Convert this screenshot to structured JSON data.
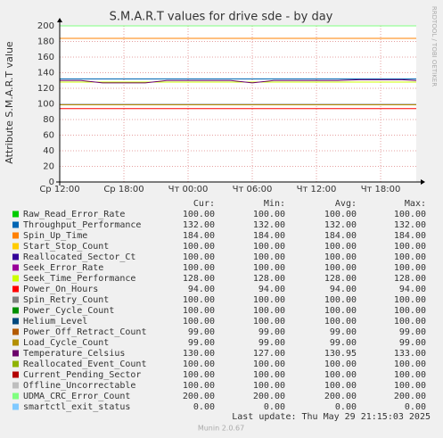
{
  "chart_data": {
    "type": "line",
    "title": "S.M.A.R.T values for drive sde - by day",
    "y_label": "Attribute S.M.A.R.T value",
    "watermark": "RRDTOOL / TOBI OETIKER",
    "footer": "Munin 2.0.67",
    "last_update": "Last update: Thu May 29 21:15:03 2025",
    "grid": true,
    "x": [
      0,
      2,
      4,
      6,
      8,
      10,
      12,
      14,
      16,
      18,
      20,
      22,
      24,
      26,
      28,
      30,
      32,
      33.33
    ],
    "xlim": [
      0,
      33.33
    ],
    "xticks": [
      {
        "value": 0,
        "label": "Ср 12:00"
      },
      {
        "value": 6,
        "label": "Ср 18:00"
      },
      {
        "value": 12,
        "label": "Чт 00:00"
      },
      {
        "value": 18,
        "label": "Чт 06:00"
      },
      {
        "value": 24,
        "label": "Чт 12:00"
      },
      {
        "value": 30,
        "label": "Чт 18:00"
      }
    ],
    "ylim": [
      0,
      200
    ],
    "yticks": [
      0,
      20,
      40,
      60,
      80,
      100,
      120,
      140,
      160,
      180,
      200
    ],
    "series": [
      {
        "name": "Raw_Read_Error_Rate",
        "color": "#00cc00",
        "values": [
          100,
          100,
          100,
          100,
          100,
          100,
          100,
          100,
          100,
          100,
          100,
          100,
          100,
          100,
          100,
          100,
          100,
          100
        ]
      },
      {
        "name": "Throughput_Performance",
        "color": "#0066b3",
        "values": [
          132,
          132,
          132,
          132,
          132,
          132,
          132,
          132,
          132,
          132,
          132,
          132,
          132,
          132,
          132,
          132,
          132,
          132
        ]
      },
      {
        "name": "Spin_Up_Time",
        "color": "#ff8000",
        "values": [
          184,
          184,
          184,
          184,
          184,
          184,
          184,
          184,
          184,
          184,
          184,
          184,
          184,
          184,
          184,
          184,
          184,
          184
        ]
      },
      {
        "name": "Start_Stop_Count",
        "color": "#ffcc00",
        "values": [
          100,
          100,
          100,
          100,
          100,
          100,
          100,
          100,
          100,
          100,
          100,
          100,
          100,
          100,
          100,
          100,
          100,
          100
        ]
      },
      {
        "name": "Reallocated_Sector_Ct",
        "color": "#330099",
        "values": [
          100,
          100,
          100,
          100,
          100,
          100,
          100,
          100,
          100,
          100,
          100,
          100,
          100,
          100,
          100,
          100,
          100,
          100
        ]
      },
      {
        "name": "Seek_Error_Rate",
        "color": "#990099",
        "values": [
          100,
          100,
          100,
          100,
          100,
          100,
          100,
          100,
          100,
          100,
          100,
          100,
          100,
          100,
          100,
          100,
          100,
          100
        ]
      },
      {
        "name": "Seek_Time_Performance",
        "color": "#ccff00",
        "values": [
          128,
          128,
          128,
          128,
          128,
          128,
          128,
          128,
          128,
          128,
          128,
          128,
          128,
          128,
          128,
          128,
          128,
          128
        ]
      },
      {
        "name": "Power_On_Hours",
        "color": "#ff0000",
        "values": [
          94,
          94,
          94,
          94,
          94,
          94,
          94,
          94,
          94,
          94,
          94,
          94,
          94,
          94,
          94,
          94,
          94,
          94
        ]
      },
      {
        "name": "Spin_Retry_Count",
        "color": "#808080",
        "values": [
          100,
          100,
          100,
          100,
          100,
          100,
          100,
          100,
          100,
          100,
          100,
          100,
          100,
          100,
          100,
          100,
          100,
          100
        ]
      },
      {
        "name": "Power_Cycle_Count",
        "color": "#008f00",
        "values": [
          100,
          100,
          100,
          100,
          100,
          100,
          100,
          100,
          100,
          100,
          100,
          100,
          100,
          100,
          100,
          100,
          100,
          100
        ]
      },
      {
        "name": "Helium_Level",
        "color": "#00487d",
        "values": [
          100,
          100,
          100,
          100,
          100,
          100,
          100,
          100,
          100,
          100,
          100,
          100,
          100,
          100,
          100,
          100,
          100,
          100
        ]
      },
      {
        "name": "Power_Off_Retract_Count",
        "color": "#b35a00",
        "values": [
          99,
          99,
          99,
          99,
          99,
          99,
          99,
          99,
          99,
          99,
          99,
          99,
          99,
          99,
          99,
          99,
          99,
          99
        ]
      },
      {
        "name": "Load_Cycle_Count",
        "color": "#b38f00",
        "values": [
          99,
          99,
          99,
          99,
          99,
          99,
          99,
          99,
          99,
          99,
          99,
          99,
          99,
          99,
          99,
          99,
          99,
          99
        ]
      },
      {
        "name": "Temperature_Celsius",
        "color": "#6b006b",
        "values": [
          130,
          130,
          127,
          127,
          127,
          130,
          130,
          130,
          130,
          127,
          130,
          130,
          130,
          130,
          131,
          131,
          131,
          130
        ]
      },
      {
        "name": "Reallocated_Event_Count",
        "color": "#8fb300",
        "values": [
          100,
          100,
          100,
          100,
          100,
          100,
          100,
          100,
          100,
          100,
          100,
          100,
          100,
          100,
          100,
          100,
          100,
          100
        ]
      },
      {
        "name": "Current_Pending_Sector",
        "color": "#b30000",
        "values": [
          100,
          100,
          100,
          100,
          100,
          100,
          100,
          100,
          100,
          100,
          100,
          100,
          100,
          100,
          100,
          100,
          100,
          100
        ]
      },
      {
        "name": "Offline_Uncorrectable",
        "color": "#bebebe",
        "values": [
          100,
          100,
          100,
          100,
          100,
          100,
          100,
          100,
          100,
          100,
          100,
          100,
          100,
          100,
          100,
          100,
          100,
          100
        ]
      },
      {
        "name": "UDMA_CRC_Error_Count",
        "color": "#80ff80",
        "values": [
          200,
          200,
          200,
          200,
          200,
          200,
          200,
          200,
          200,
          200,
          200,
          200,
          200,
          200,
          200,
          200,
          200,
          200
        ]
      },
      {
        "name": "smartctl_exit_status",
        "color": "#80c9ff",
        "values": [
          0,
          0,
          0,
          0,
          0,
          0,
          0,
          0,
          0,
          0,
          0,
          0,
          0,
          0,
          0,
          0,
          0,
          0
        ]
      }
    ],
    "legend_table": {
      "columns": [
        "Cur:",
        "Min:",
        "Avg:",
        "Max:"
      ],
      "rows": [
        [
          "100.00",
          "100.00",
          "100.00",
          "100.00"
        ],
        [
          "132.00",
          "132.00",
          "132.00",
          "132.00"
        ],
        [
          "184.00",
          "184.00",
          "184.00",
          "184.00"
        ],
        [
          "100.00",
          "100.00",
          "100.00",
          "100.00"
        ],
        [
          "100.00",
          "100.00",
          "100.00",
          "100.00"
        ],
        [
          "100.00",
          "100.00",
          "100.00",
          "100.00"
        ],
        [
          "128.00",
          "128.00",
          "128.00",
          "128.00"
        ],
        [
          "94.00",
          "94.00",
          "94.00",
          "94.00"
        ],
        [
          "100.00",
          "100.00",
          "100.00",
          "100.00"
        ],
        [
          "100.00",
          "100.00",
          "100.00",
          "100.00"
        ],
        [
          "100.00",
          "100.00",
          "100.00",
          "100.00"
        ],
        [
          "99.00",
          "99.00",
          "99.00",
          "99.00"
        ],
        [
          "99.00",
          "99.00",
          "99.00",
          "99.00"
        ],
        [
          "130.00",
          "127.00",
          "130.95",
          "133.00"
        ],
        [
          "100.00",
          "100.00",
          "100.00",
          "100.00"
        ],
        [
          "100.00",
          "100.00",
          "100.00",
          "100.00"
        ],
        [
          "100.00",
          "100.00",
          "100.00",
          "100.00"
        ],
        [
          "200.00",
          "200.00",
          "200.00",
          "200.00"
        ],
        [
          "0.00",
          "0.00",
          "0.00",
          "0.00"
        ]
      ]
    }
  }
}
